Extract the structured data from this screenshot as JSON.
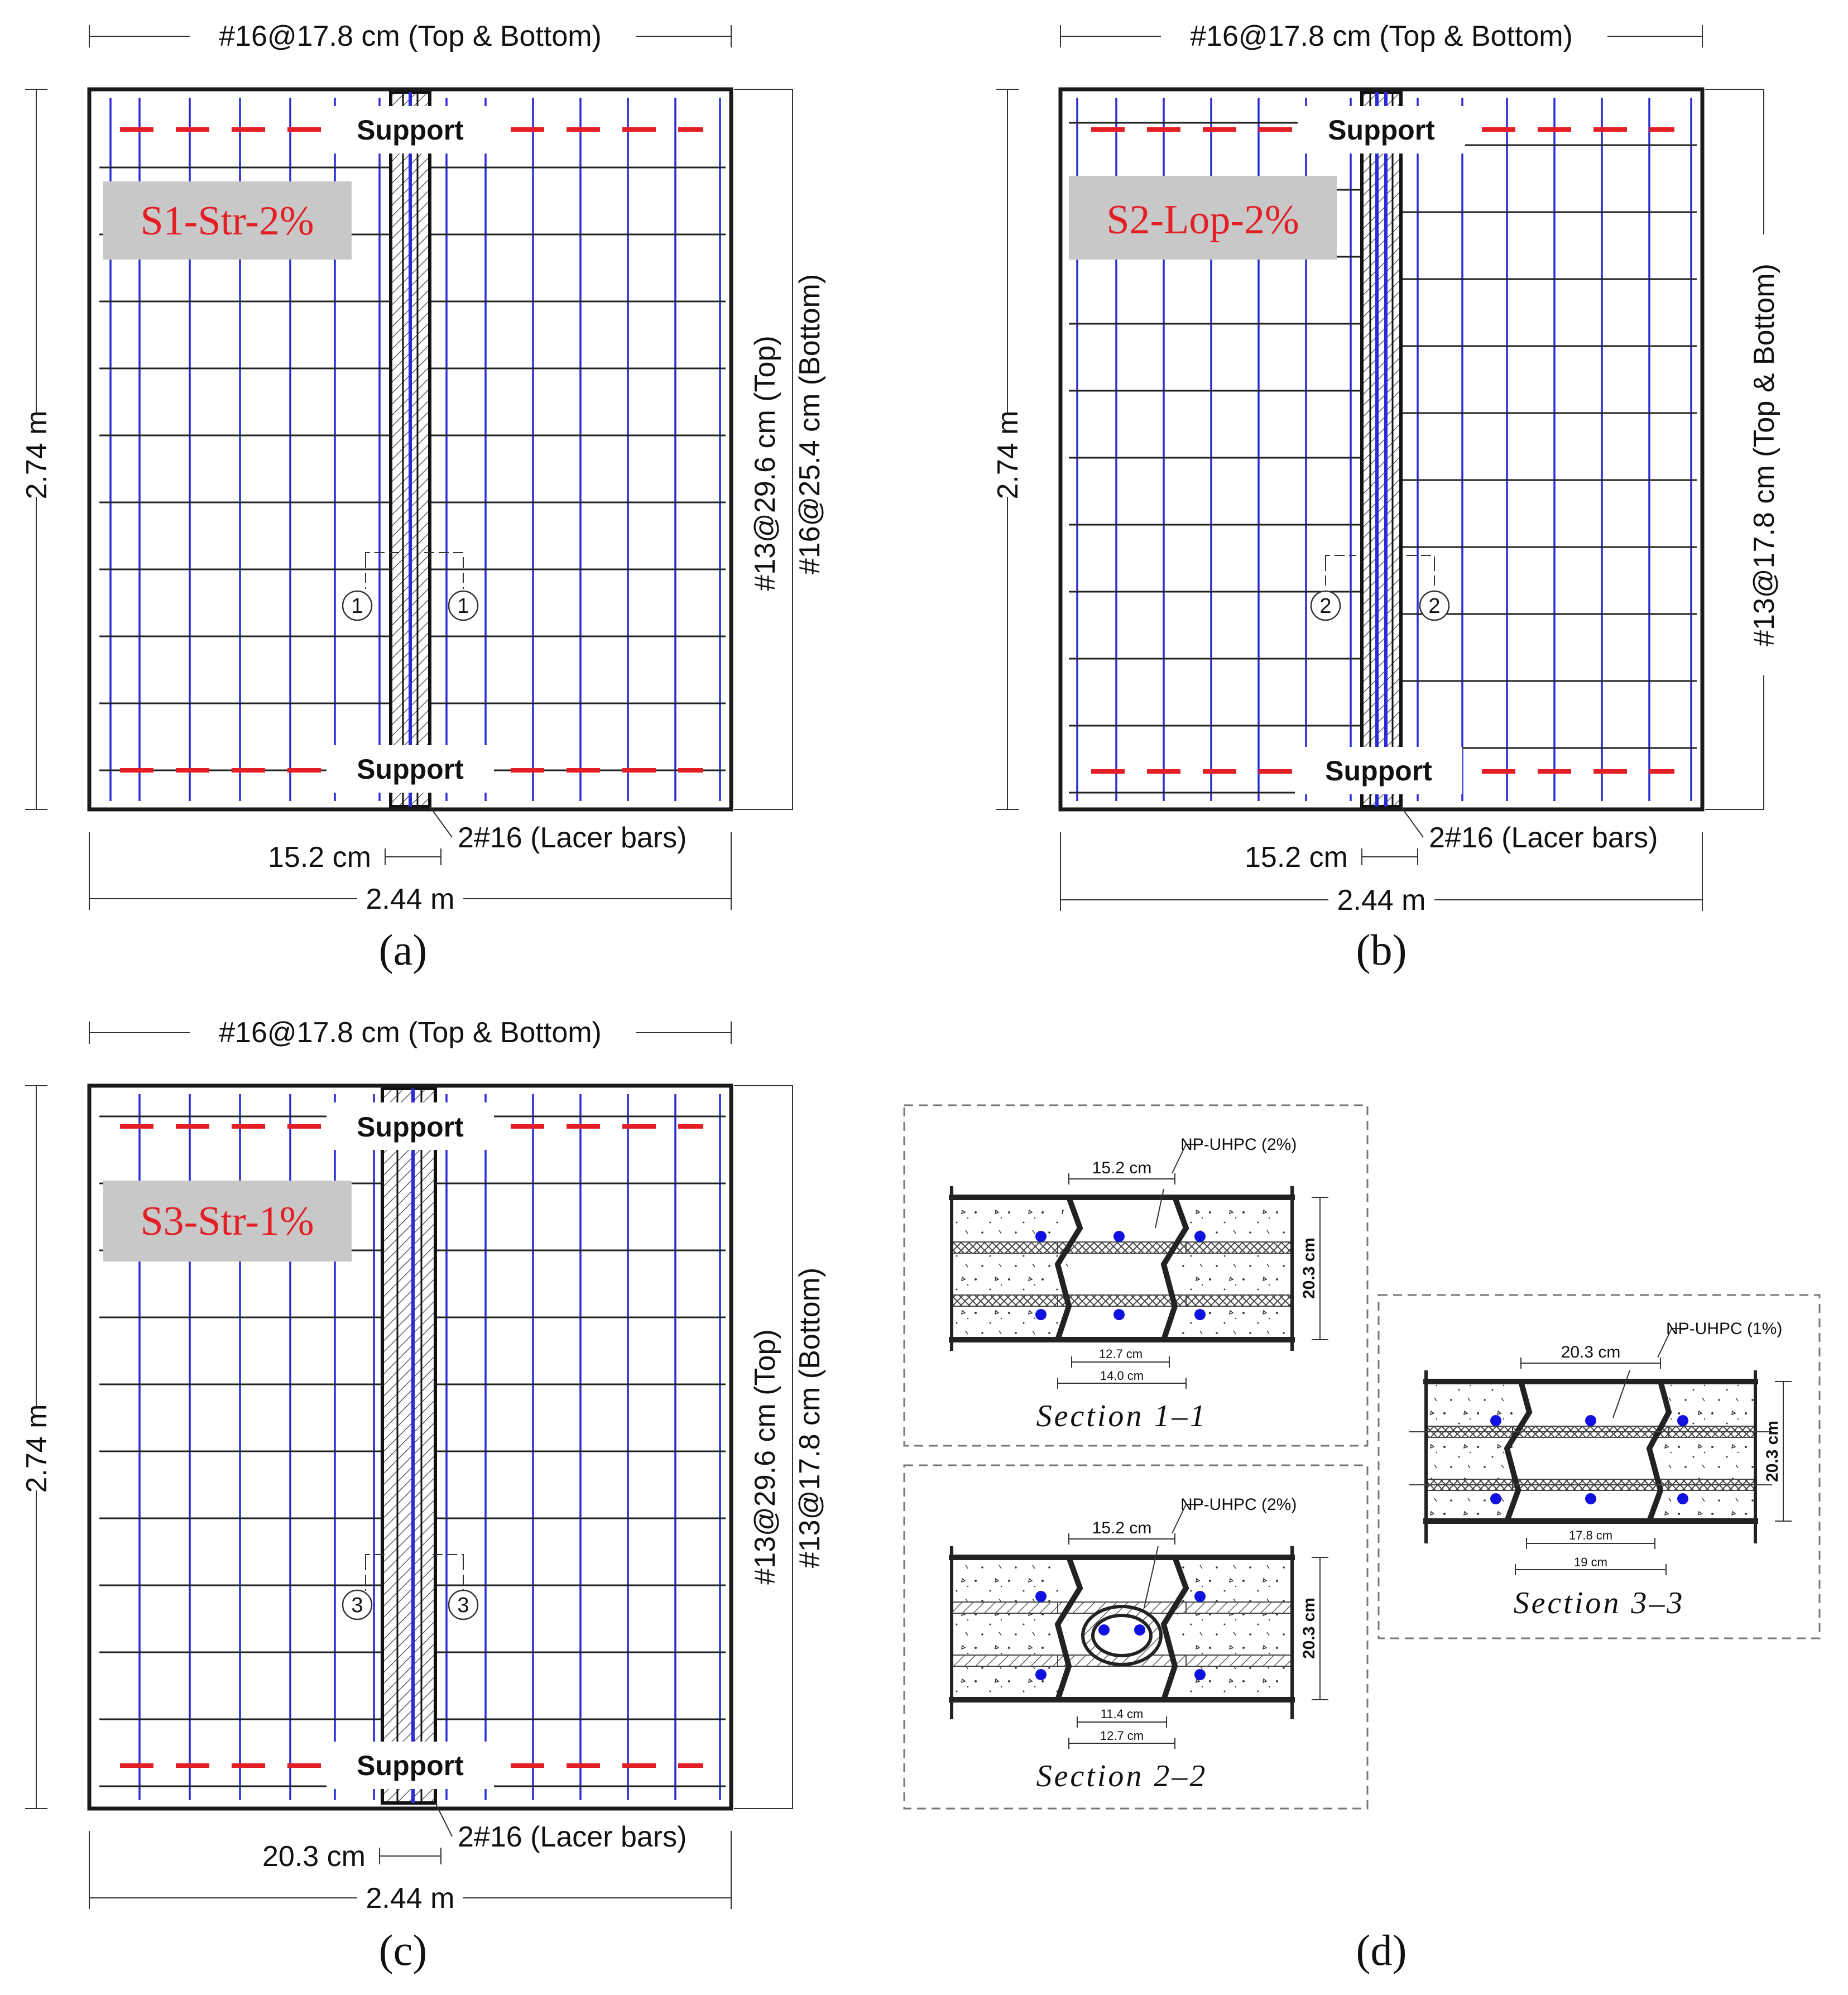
{
  "figure": {
    "panels": [
      {
        "id": "a",
        "caption": "(a)",
        "tag": "S1-Str-2%",
        "top_dim": "#16@17.8 cm (Top & Bottom)",
        "left_dim": "2.74 m",
        "bottom_dim": "2.44 m",
        "joint_dim": "15.2 cm",
        "lacer_label": "2#16 (Lacer bars)",
        "right_label_1": "#13@29.6 cm (Top)",
        "right_label_2": "#16@25.4 cm (Bottom)",
        "support_top": "Support",
        "support_bottom": "Support",
        "section_mark": "1"
      },
      {
        "id": "b",
        "caption": "(b)",
        "tag": "S2-Lop-2%",
        "top_dim": "#16@17.8 cm (Top & Bottom)",
        "left_dim": "2.74 m",
        "bottom_dim": "2.44 m",
        "joint_dim": "15.2 cm",
        "lacer_label": "2#16 (Lacer bars)",
        "right_label_1": "#13@17.8 cm (Top & Bottom)",
        "support_top": "Support",
        "support_bottom": "Support",
        "section_mark": "2"
      },
      {
        "id": "c",
        "caption": "(c)",
        "tag": "S3-Str-1%",
        "top_dim": "#16@17.8 cm (Top & Bottom)",
        "left_dim": "2.74 m",
        "bottom_dim": "2.44 m",
        "joint_dim": "20.3 cm",
        "lacer_label": "2#16 (Lacer bars)",
        "right_label_1": "#13@29.6 cm (Top)",
        "right_label_2": "#13@17.8 cm (Bottom)",
        "support_top": "Support",
        "support_bottom": "Support",
        "section_mark": "3"
      }
    ],
    "sections": [
      {
        "title": "Section  1–1",
        "material": "NP-UHPC (2%)",
        "width_dim": "15.2 cm",
        "depth_dim": "20.3 cm",
        "inner_dim": "12.7 cm",
        "outer_dim": "14.0 cm"
      },
      {
        "title": "Section  2–2",
        "material": "NP-UHPC (2%)",
        "width_dim": "15.2 cm",
        "depth_dim": "20.3 cm",
        "inner_dim": "11.4 cm",
        "outer_dim": "12.7 cm"
      },
      {
        "title": "Section  3–3",
        "material": "NP-UHPC (1%)",
        "width_dim": "20.3 cm",
        "depth_dim": "20.3 cm",
        "inner_dim": "17.8 cm",
        "outer_dim": "19 cm"
      }
    ],
    "panel_d_caption": "(d)",
    "colors": {
      "rebar_blue": "#2b2bd6",
      "support_red": "#e31e24",
      "tag_bg": "#c8c8c8",
      "line": "#1a1a1a",
      "bar_dot": "#1010e0"
    }
  }
}
